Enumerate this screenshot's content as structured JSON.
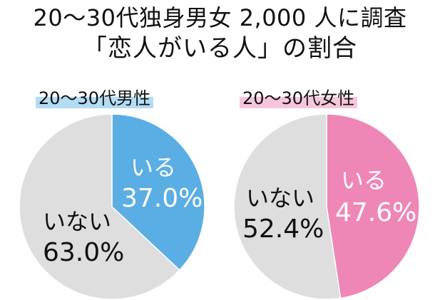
{
  "title": {
    "line1": "20～30代独身男女 2,000 人に調査",
    "line2": "「恋人がいる人」の割合"
  },
  "colors": {
    "men_accent": "#5aaee3",
    "men_label_bg": "#b3dcf5",
    "women_accent": "#ee87b5",
    "women_label_bg": "#f7c6dc",
    "no_partner": "#dedede",
    "outline": "#ffffff"
  },
  "chart_data": [
    {
      "type": "pie",
      "title": "20～30代男性",
      "slices": [
        {
          "label": "いる",
          "value": 37.0,
          "display": "37.0%",
          "color": "#5aaee3",
          "text_color": "#ffffff"
        },
        {
          "label": "いない",
          "value": 63.0,
          "display": "63.0%",
          "color": "#dedede",
          "text_color": "#111111"
        }
      ],
      "start": "12 o'clock",
      "direction": "clockwise"
    },
    {
      "type": "pie",
      "title": "20～30代女性",
      "slices": [
        {
          "label": "いる",
          "value": 47.6,
          "display": "47.6%",
          "color": "#ee87b5",
          "text_color": "#ffffff"
        },
        {
          "label": "いない",
          "value": 52.4,
          "display": "52.4%",
          "color": "#dedede",
          "text_color": "#111111"
        }
      ],
      "start": "12 o'clock",
      "direction": "clockwise"
    }
  ]
}
